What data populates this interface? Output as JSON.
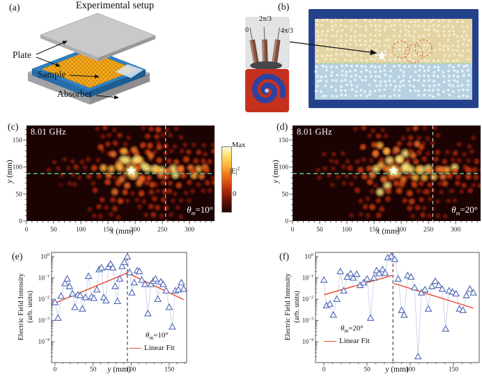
{
  "figure_labels": {
    "a": "(a)",
    "b": "(b)",
    "c": "(c)",
    "d": "(d)",
    "e": "(e)",
    "f": "(f)"
  },
  "panel_a": {
    "title": "Experimental setup",
    "label_plate": "Plate",
    "label_sample": "Sample",
    "label_absorber": "Absorber"
  },
  "panel_b": {
    "phase_labels": [
      "0",
      "2π/3",
      "4π/3"
    ]
  },
  "colors": {
    "accent_fit": "#e85038",
    "triangle": "#4f68b5",
    "green_dash": "#57c795",
    "frame_blue": "#24418c",
    "heat_bg": "#1c0303",
    "absorber_blue": "#2f80c4",
    "sample_yellow": "#f2a81c",
    "plate_gray": "#c9c9ca"
  },
  "chart_data": [
    {
      "type": "heatmap",
      "panel": "c",
      "freq_label": "8.01 GHz",
      "theta": "θ",
      "theta_sub": "m",
      "theta_eq": "=10°",
      "xlabel_var": "x",
      "xlabel_unit": "(mm)",
      "ylabel_var": "y",
      "ylabel_unit": "(mm)",
      "xticks": [
        0,
        50,
        100,
        150,
        200,
        250,
        300
      ],
      "yticks": [
        0,
        50,
        100,
        150
      ],
      "xmax_mm": 346,
      "ymax_mm": 177,
      "star_mm": [
        193,
        93
      ],
      "hline_mm": 88,
      "vline_mm": 256,
      "seed": 13,
      "colorbar": {
        "max": "Max",
        "base": "|E|",
        "sup": "2",
        "min": "0"
      }
    },
    {
      "type": "heatmap",
      "panel": "d",
      "freq_label": "8.01 GHz",
      "theta": "θ",
      "theta_sub": "m",
      "theta_eq": "=20°",
      "xlabel_var": "x",
      "xlabel_unit": "(mm)",
      "ylabel_var": "y",
      "ylabel_unit": "(mm)",
      "xticks": [
        0,
        50,
        100,
        150,
        200,
        250,
        300
      ],
      "yticks": [
        0,
        50,
        100,
        150
      ],
      "xmax_mm": 346,
      "ymax_mm": 177,
      "star_mm": [
        186,
        93
      ],
      "hline_mm": 88,
      "vline_mm": 258,
      "seed": 47
    },
    {
      "type": "scatter",
      "panel": "e",
      "ylabel_line1": "Electric Field Intensity",
      "ylabel_line2": "(arb. units)",
      "xlabel_var": "y",
      "xlabel_unit": "(mm)",
      "xticks": [
        0,
        50,
        100,
        150
      ],
      "ytick_exponents": [
        0,
        -1,
        -2,
        -3,
        -4
      ],
      "dash_x": 95,
      "dash_color": "#3a3a3a",
      "legend_theta": "θ",
      "legend_sub": "m",
      "legend_eq": "=10°",
      "legend_fit": "Linear Fit",
      "x": [
        0,
        4,
        8,
        13,
        16,
        19,
        23,
        26,
        30,
        33,
        36,
        40,
        44,
        48,
        51,
        55,
        58,
        61,
        64,
        67,
        70,
        73,
        76,
        79,
        82,
        85,
        88,
        91,
        95,
        98,
        101,
        104,
        108,
        111,
        114,
        118,
        122,
        126,
        129,
        132,
        135,
        139,
        142,
        146,
        150,
        154,
        158,
        162,
        166,
        169
      ],
      "v": [
        0.007,
        0.0013,
        0.014,
        0.055,
        0.09,
        0.04,
        0.018,
        0.0042,
        0.016,
        0.015,
        0.0035,
        0.012,
        0.12,
        0.013,
        0.011,
        0.028,
        0.25,
        0.3,
        0.012,
        0.0085,
        0.32,
        0.45,
        0.3,
        0.04,
        0.008,
        0.09,
        0.35,
        0.55,
        1.0,
        0.18,
        0.02,
        0.06,
        0.22,
        0.2,
        0.08,
        0.05,
        0.0021,
        0.05,
        0.07,
        0.09,
        0.01,
        0.065,
        0.05,
        0.025,
        0.0042,
        0.0005,
        0.025,
        0.028,
        0.06,
        0.03
      ],
      "fit": [
        [
          0,
          0.0065,
          95,
          0.17
        ],
        [
          95,
          0.17,
          169,
          0.0095
        ]
      ]
    },
    {
      "type": "scatter",
      "panel": "f",
      "ylabel_line1": "Electric Field Intensity",
      "ylabel_line2": "(arb. units)",
      "xlabel_var": "y",
      "xlabel_unit": "(mm)",
      "xticks": [
        0,
        50,
        100,
        150
      ],
      "ytick_exponents": [
        0,
        -1,
        -2,
        -3,
        -4
      ],
      "dash_x": 80,
      "dash_color": "#8a7a72",
      "legend_theta": "θ",
      "legend_sub": "m",
      "legend_eq": "=20°",
      "legend_fit": "Linear Fit",
      "x": [
        0,
        3,
        7,
        11,
        15,
        19,
        23,
        27,
        31,
        34,
        38,
        42,
        46,
        50,
        54,
        58,
        61,
        64,
        68,
        71,
        74,
        78,
        82,
        86,
        90,
        93,
        97,
        101,
        105,
        109,
        113,
        117,
        121,
        125,
        129,
        133,
        137,
        141,
        145,
        149,
        153,
        157,
        161,
        165,
        169,
        173
      ],
      "v": [
        0.08,
        0.005,
        0.006,
        0.0018,
        0.01,
        0.2,
        0.025,
        0.11,
        0.16,
        0.1,
        0.15,
        0.045,
        0.06,
        0.09,
        0.0013,
        0.1,
        0.22,
        0.16,
        0.25,
        0.17,
        0.9,
        1.05,
        0.75,
        0.09,
        0.003,
        0.0018,
        0.13,
        0.11,
        0.035,
        2e-05,
        0.02,
        0.028,
        0.0035,
        0.04,
        0.07,
        0.045,
        0.03,
        0.0004,
        0.025,
        0.022,
        0.018,
        0.0035,
        0.003,
        0.015,
        0.03,
        0.02
      ],
      "fit": [
        [
          0,
          0.016,
          79,
          0.13
        ],
        [
          81,
          0.055,
          173,
          0.0038
        ]
      ]
    }
  ]
}
